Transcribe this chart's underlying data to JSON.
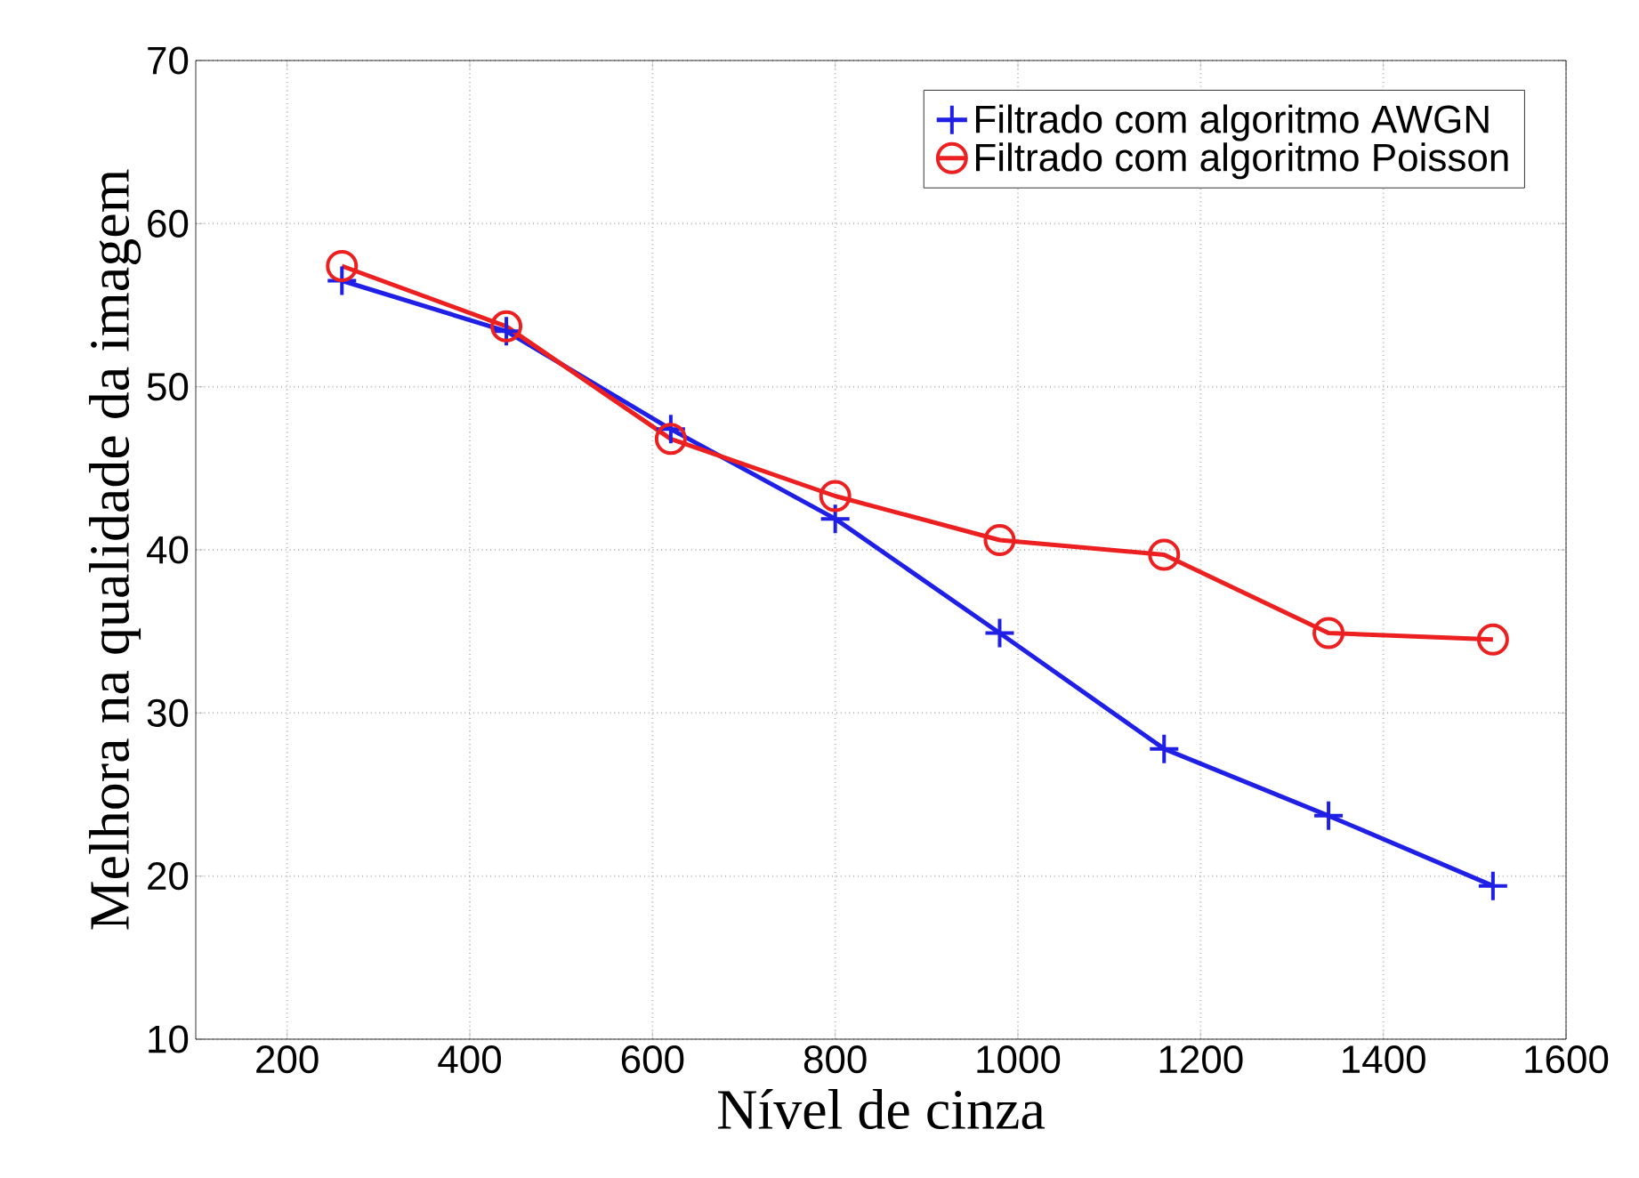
{
  "chart_data": {
    "type": "line",
    "xlabel": "Nível de cinza",
    "ylabel": "Melhora na qualidade da imagem",
    "x": [
      260,
      440,
      620,
      800,
      980,
      1160,
      1340,
      1520
    ],
    "series": [
      {
        "name": "Filtrado com algoritmo AWGN",
        "color": "#1f1fe6",
        "marker": "cross",
        "values": [
          56.5,
          53.4,
          47.4,
          41.9,
          34.9,
          27.8,
          23.7,
          19.4
        ]
      },
      {
        "name": "Filtrado com algoritmo Poisson",
        "color": "#ec2020",
        "marker": "circle",
        "values": [
          57.4,
          53.7,
          46.8,
          43.3,
          40.6,
          39.7,
          34.9,
          34.5
        ]
      }
    ],
    "xlim": [
      100,
      1600
    ],
    "ylim": [
      10,
      70
    ],
    "xticks": [
      200,
      400,
      600,
      800,
      1000,
      1200,
      1400,
      1600
    ],
    "yticks": [
      10,
      20,
      30,
      40,
      50,
      60,
      70
    ],
    "grid": true,
    "legend": "top right",
    "line_style": "solid"
  }
}
